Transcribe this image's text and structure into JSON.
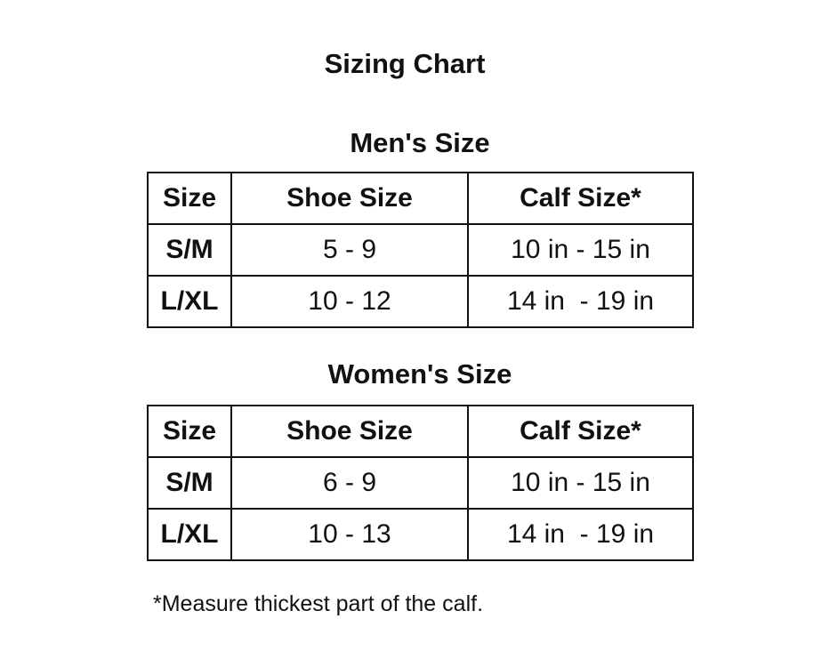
{
  "title": "Sizing Chart",
  "tables": [
    {
      "heading": "Men's Size",
      "headers": [
        "Size",
        "Shoe Size",
        "Calf Size*"
      ],
      "rows": [
        [
          "S/M",
          "5 - 9",
          "10 in - 15 in"
        ],
        [
          "L/XL",
          "10 - 12",
          "14 in  - 19 in"
        ]
      ]
    },
    {
      "heading": "Women's Size",
      "headers": [
        "Size",
        "Shoe Size",
        "Calf Size*"
      ],
      "rows": [
        [
          "S/M",
          "6 - 9",
          "10 in - 15 in"
        ],
        [
          "L/XL",
          "10 - 13",
          "14 in  - 19 in"
        ]
      ]
    }
  ],
  "footnote": "*Measure thickest part of the calf."
}
